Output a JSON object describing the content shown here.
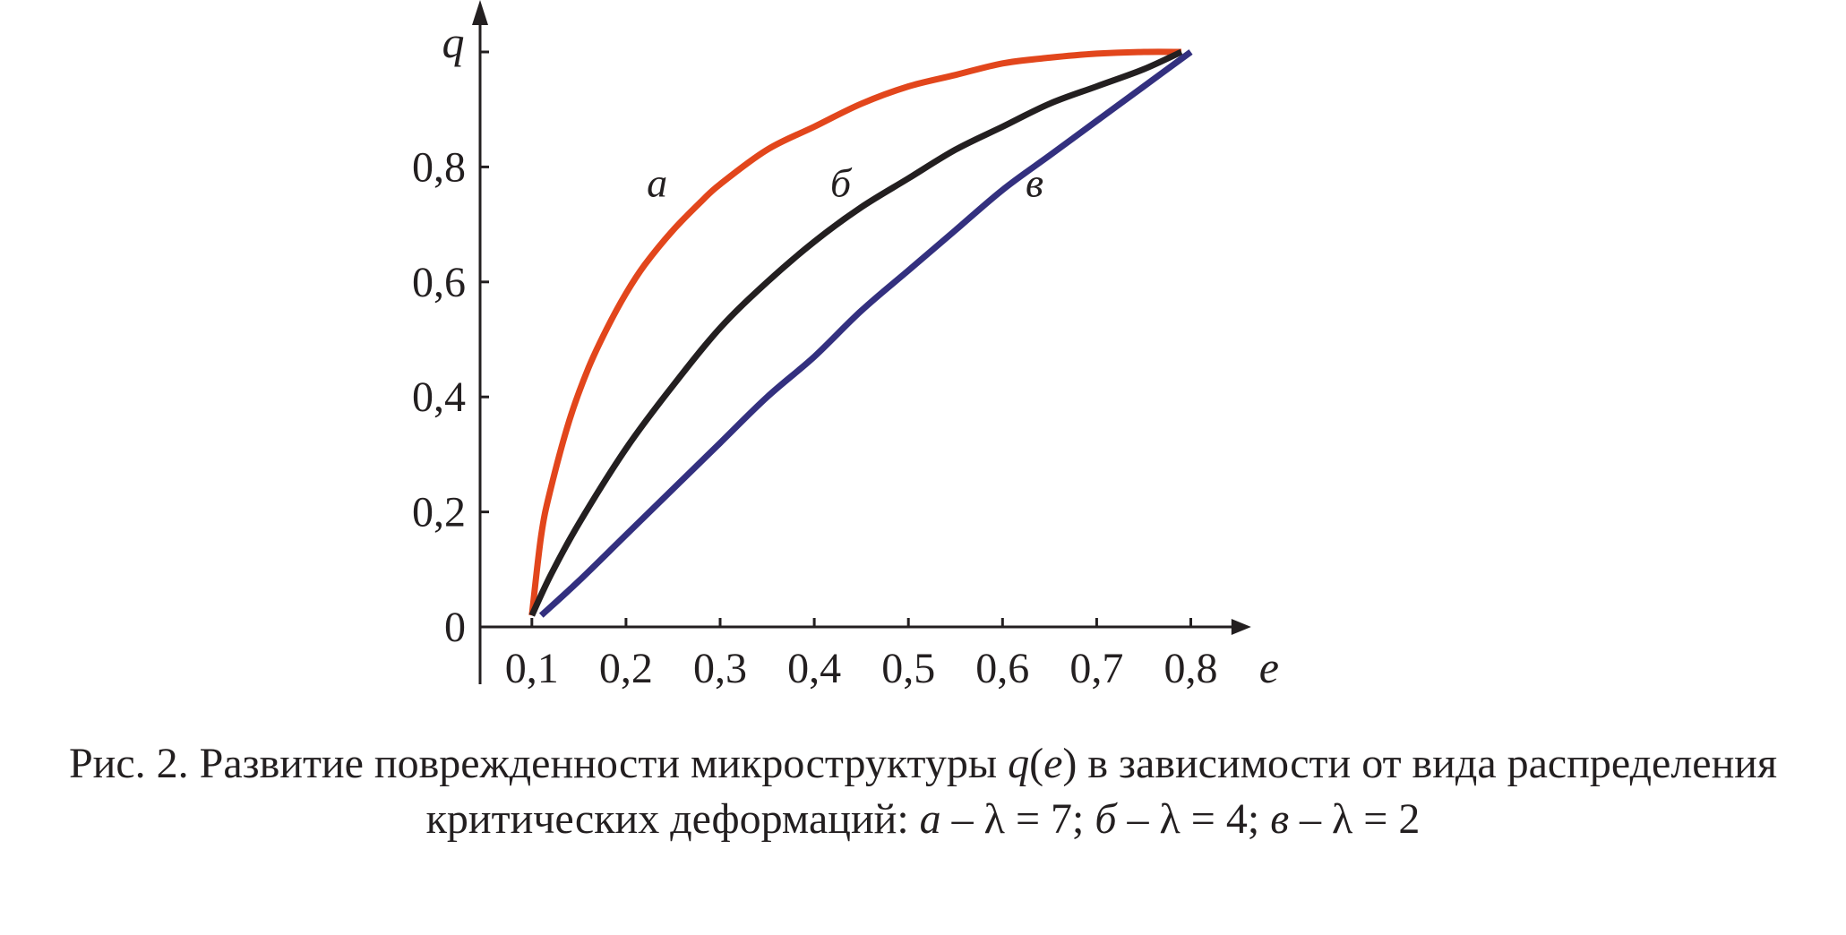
{
  "chart_data": {
    "type": "line",
    "xlabel": "e",
    "ylabel": "q",
    "xlim": [
      0.045,
      0.845
    ],
    "ylim": [
      0,
      1.0
    ],
    "x_ticks": [
      0.1,
      0.2,
      0.3,
      0.4,
      0.5,
      0.6,
      0.7,
      0.8
    ],
    "x_tick_labels": [
      "0,1",
      "0,2",
      "0,3",
      "0,4",
      "0,5",
      "0,6",
      "0,7",
      "0,8"
    ],
    "y_ticks": [
      0,
      0.2,
      0.4,
      0.6,
      0.8,
      1.0
    ],
    "y_tick_labels": [
      "0",
      "0,2",
      "0,4",
      "0,6",
      "0,8",
      ""
    ],
    "grid": false,
    "legend": "none",
    "series": [
      {
        "name": "а",
        "color": "#e2461c",
        "x": [
          0.1,
          0.11,
          0.12,
          0.14,
          0.16,
          0.18,
          0.2,
          0.22,
          0.25,
          0.28,
          0.3,
          0.35,
          0.4,
          0.45,
          0.5,
          0.55,
          0.6,
          0.65,
          0.7,
          0.75,
          0.79
        ],
        "y": [
          0.02,
          0.16,
          0.24,
          0.36,
          0.45,
          0.52,
          0.58,
          0.63,
          0.69,
          0.74,
          0.77,
          0.83,
          0.87,
          0.91,
          0.94,
          0.96,
          0.98,
          0.99,
          0.997,
          1.0,
          1.0
        ]
      },
      {
        "name": "б",
        "color": "#231f20",
        "x": [
          0.1,
          0.12,
          0.15,
          0.2,
          0.25,
          0.3,
          0.35,
          0.4,
          0.45,
          0.5,
          0.55,
          0.6,
          0.65,
          0.7,
          0.75,
          0.79
        ],
        "y": [
          0.02,
          0.09,
          0.18,
          0.31,
          0.42,
          0.52,
          0.6,
          0.67,
          0.73,
          0.78,
          0.83,
          0.87,
          0.91,
          0.94,
          0.97,
          1.0
        ]
      },
      {
        "name": "в",
        "color": "#33307f",
        "x": [
          0.11,
          0.15,
          0.2,
          0.25,
          0.3,
          0.35,
          0.4,
          0.45,
          0.5,
          0.55,
          0.6,
          0.65,
          0.7,
          0.75,
          0.8
        ],
        "y": [
          0.02,
          0.08,
          0.16,
          0.24,
          0.32,
          0.4,
          0.47,
          0.55,
          0.62,
          0.69,
          0.76,
          0.82,
          0.88,
          0.94,
          1.0
        ]
      }
    ],
    "curve_labels": [
      {
        "text": "а",
        "x": 0.233,
        "y": 0.77
      },
      {
        "text": "б",
        "x": 0.428,
        "y": 0.77
      },
      {
        "text": "в",
        "x": 0.634,
        "y": 0.77
      }
    ]
  },
  "caption": {
    "line1_prefix": "Рис. 2. Развитие поврежденности микроструктуры ",
    "line1_func_q": "q",
    "line1_func_open": "(",
    "line1_func_e": "e",
    "line1_func_close": ")",
    "line1_suffix": " в зависимости от вида распределения",
    "line2_prefix": "критических деформаций: ",
    "a_letter": "а",
    "a_rest": " – λ = 7; ",
    "b_letter": "б",
    "b_rest": " – λ = 4; ",
    "v_letter": "в",
    "v_rest": " – λ = 2"
  }
}
